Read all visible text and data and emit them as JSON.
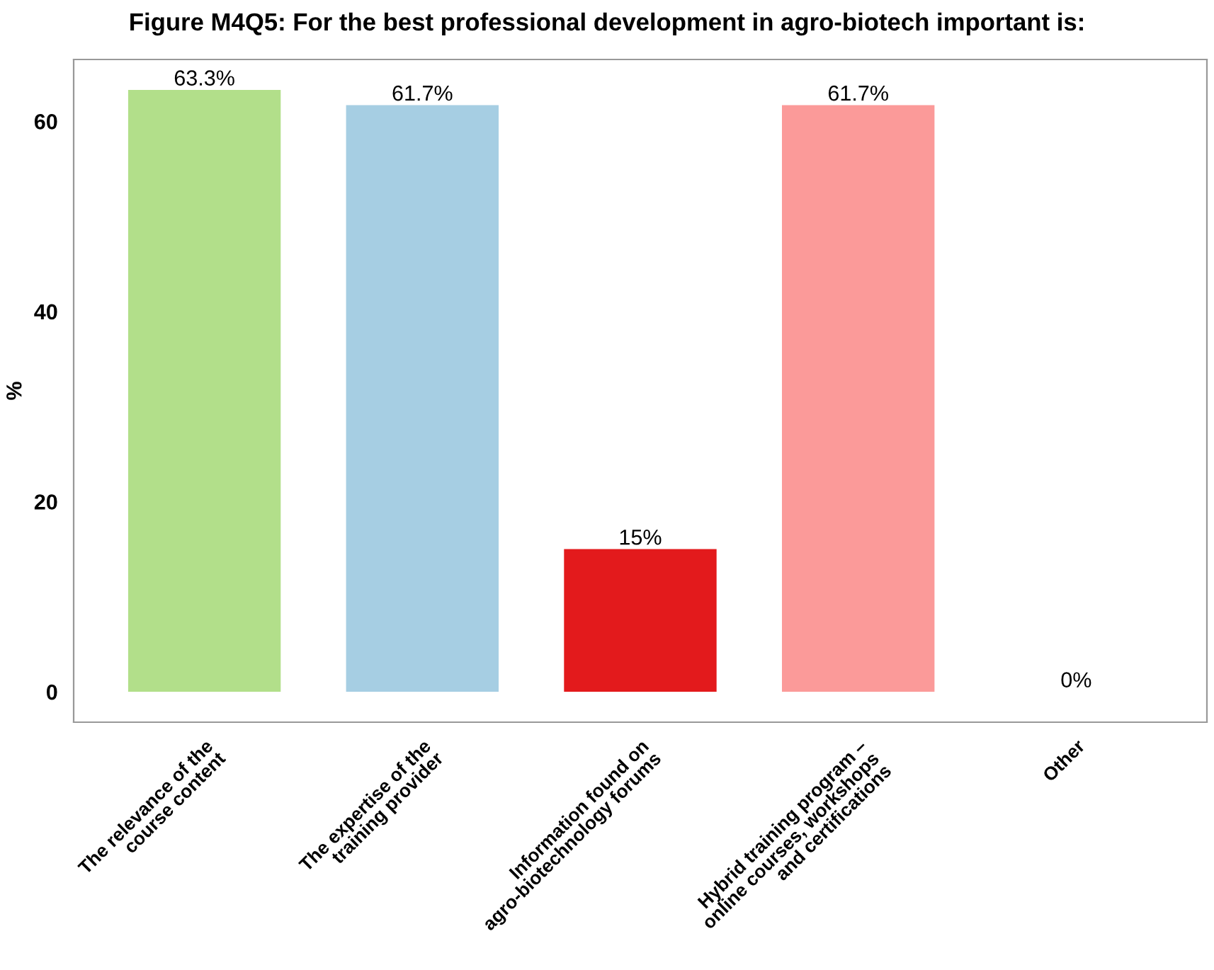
{
  "chart_data": {
    "type": "bar",
    "title": "Figure M4Q5: For the best professional development in agro-biotech important is:",
    "ylabel": "%",
    "categories": [
      "The relevance of the\ncourse content",
      "The expertise of the\ntraining provider",
      "Information found on\nagro-biotechnology forums",
      "Hybrid training program –\nonline courses, workshops\nand certifications",
      "Other"
    ],
    "values": [
      63.3,
      61.7,
      15,
      61.7,
      0
    ],
    "colors": [
      "#b2df8a",
      "#a6cee3",
      "#e31a1c",
      "#fb9a99",
      "#fdbf6f"
    ],
    "value_labels": [
      "63.3%",
      "61.7%",
      "15%",
      "61.7%",
      "0%"
    ],
    "ylim": [
      -3.2,
      66.5
    ],
    "yticks": [
      0,
      20,
      40,
      60
    ],
    "grid": false,
    "legend": false
  }
}
